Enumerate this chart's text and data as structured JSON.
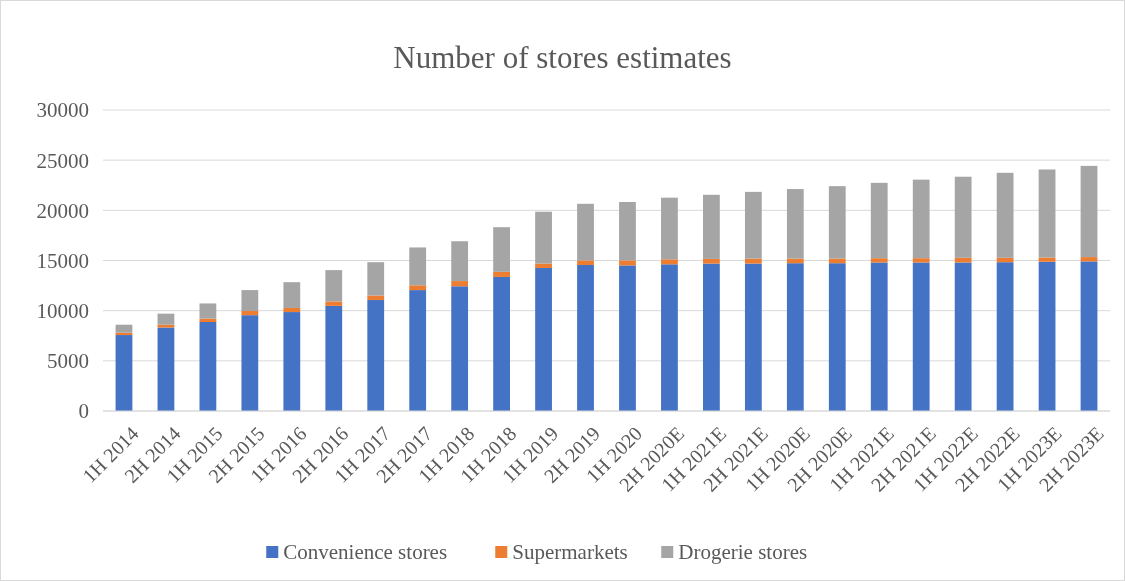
{
  "chart_data": {
    "type": "bar",
    "title": "Number of stores estimates",
    "stacked": true,
    "categories": [
      "1H 2014",
      "2H 2014",
      "1H 2015",
      "2H 2015",
      "1H 2016",
      "2H 2016",
      "1H 2017",
      "2H 2017",
      "1H 2018",
      "1H 2018",
      "1H 2019",
      "2H 2019",
      "1H 2020",
      "2H 2020E",
      "1H 2021E",
      "2H 2021E",
      "1H 2020E",
      "2H 2020E",
      "1H 2021E",
      "2H 2021E",
      "1H 2022E",
      "2H 2022E",
      "1H 2023E",
      "2H 2023E"
    ],
    "series": [
      {
        "name": "Convenience stores",
        "color": "#4472c4",
        "values": [
          7570,
          8320,
          8870,
          9550,
          9860,
          10480,
          11060,
          12050,
          12430,
          13360,
          14250,
          14550,
          14510,
          14620,
          14690,
          14690,
          14730,
          14730,
          14800,
          14800,
          14800,
          14830,
          14870,
          14910
        ]
      },
      {
        "name": "Supermarkets",
        "color": "#ed7d31",
        "values": [
          230,
          280,
          340,
          420,
          410,
          440,
          450,
          480,
          520,
          510,
          440,
          460,
          500,
          500,
          470,
          500,
          460,
          460,
          430,
          430,
          470,
          440,
          430,
          430
        ]
      },
      {
        "name": "Drogerie stores",
        "color": "#a5a5a5",
        "values": [
          800,
          1100,
          1510,
          2080,
          2570,
          3120,
          3320,
          3770,
          3970,
          4450,
          5170,
          5640,
          5820,
          6140,
          6390,
          6650,
          6930,
          7220,
          7510,
          7830,
          8080,
          8470,
          8770,
          9090
        ]
      }
    ],
    "ylim": [
      0,
      30000
    ],
    "yticks": [
      0,
      5000,
      10000,
      15000,
      20000,
      25000,
      30000
    ],
    "grid": "y",
    "legend": "bottom"
  }
}
